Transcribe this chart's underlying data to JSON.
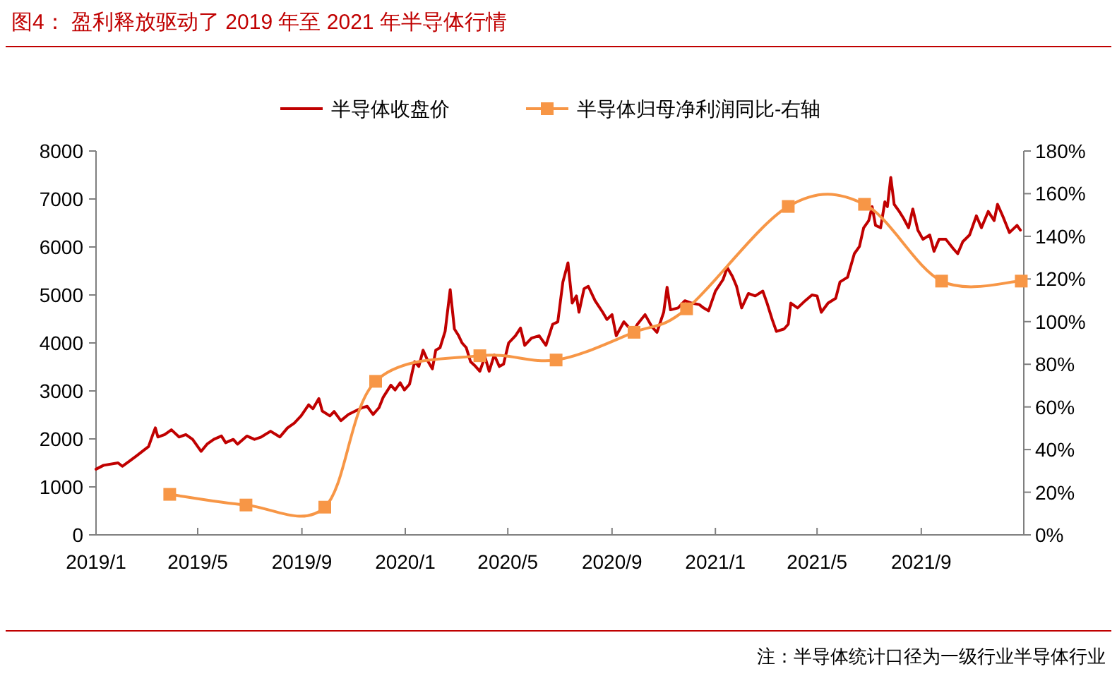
{
  "chart_data": {
    "type": "line",
    "title": "图4：  盈利释放驱动了 2019 年至 2021 年半导体行情",
    "annotations": [
      "注：半导体统计口径为一级行业半导体行业"
    ],
    "legend": "top",
    "xlim": [
      "2019-01-01",
      "2021-12-31"
    ],
    "xticks": [
      {
        "value": "2019-01-01",
        "label": "2019/1"
      },
      {
        "value": "2019-05-01",
        "label": "2019/5"
      },
      {
        "value": "2019-09-01",
        "label": "2019/9"
      },
      {
        "value": "2020-01-01",
        "label": "2020/1"
      },
      {
        "value": "2020-05-01",
        "label": "2020/5"
      },
      {
        "value": "2020-09-01",
        "label": "2020/9"
      },
      {
        "value": "2021-01-01",
        "label": "2021/1"
      },
      {
        "value": "2021-05-01",
        "label": "2021/5"
      },
      {
        "value": "2021-09-01",
        "label": "2021/9"
      }
    ],
    "ylim": [
      0,
      8000
    ],
    "yticks": [
      0,
      1000,
      2000,
      3000,
      4000,
      5000,
      6000,
      7000,
      8000
    ],
    "y2lim": [
      0,
      180
    ],
    "y2ticks": [
      {
        "value": 0,
        "label": "0%"
      },
      {
        "value": 20,
        "label": "20%"
      },
      {
        "value": 40,
        "label": "40%"
      },
      {
        "value": 60,
        "label": "60%"
      },
      {
        "value": 80,
        "label": "80%"
      },
      {
        "value": 100,
        "label": "100%"
      },
      {
        "value": 120,
        "label": "120%"
      },
      {
        "value": 140,
        "label": "140%"
      },
      {
        "value": 160,
        "label": "160%"
      },
      {
        "value": 180,
        "label": "180%"
      }
    ],
    "series": [
      {
        "name": "半导体收盘价",
        "type": "line",
        "color": "#c00000",
        "marker": "none",
        "x": [
          "2019-01-01",
          "2019-01-10",
          "2019-01-27",
          "2019-02-01",
          "2019-02-09",
          "2019-02-18",
          "2019-02-26",
          "2019-03-04",
          "2019-03-09",
          "2019-03-12",
          "2019-03-15",
          "2019-03-23",
          "2019-03-31",
          "2019-04-09",
          "2019-04-17",
          "2019-04-25",
          "2019-05-05",
          "2019-05-12",
          "2019-05-20",
          "2019-05-29",
          "2019-06-03",
          "2019-06-12",
          "2019-06-17",
          "2019-06-28",
          "2019-07-07",
          "2019-07-15",
          "2019-07-26",
          "2019-08-06",
          "2019-08-15",
          "2019-08-23",
          "2019-08-31",
          "2019-09-09",
          "2019-09-14",
          "2019-09-21",
          "2019-09-25",
          "2019-10-04",
          "2019-10-09",
          "2019-10-17",
          "2019-10-26",
          "2019-11-03",
          "2019-11-11",
          "2019-11-17",
          "2019-11-24",
          "2019-12-01",
          "2019-12-06",
          "2019-12-15",
          "2019-12-20",
          "2019-12-26",
          "2019-12-31",
          "2020-01-06",
          "2020-01-12",
          "2020-01-17",
          "2020-01-22",
          "2020-01-28",
          "2020-02-02",
          "2020-02-06",
          "2020-02-11",
          "2020-02-17",
          "2020-02-23",
          "2020-02-28",
          "2020-03-04",
          "2020-03-08",
          "2020-03-13",
          "2020-03-18",
          "2020-03-24",
          "2020-03-29",
          "2020-04-04",
          "2020-04-09",
          "2020-04-15",
          "2020-04-21",
          "2020-04-26",
          "2020-05-02",
          "2020-05-10",
          "2020-05-16",
          "2020-05-21",
          "2020-05-29",
          "2020-06-07",
          "2020-06-15",
          "2020-06-23",
          "2020-06-29",
          "2020-07-05",
          "2020-07-11",
          "2020-07-16",
          "2020-07-21",
          "2020-07-24",
          "2020-07-30",
          "2020-08-04",
          "2020-08-12",
          "2020-08-21",
          "2020-08-26",
          "2020-09-01",
          "2020-09-06",
          "2020-09-15",
          "2020-09-20",
          "2020-09-26",
          "2020-10-01",
          "2020-10-10",
          "2020-10-18",
          "2020-10-24",
          "2020-11-01",
          "2020-11-05",
          "2020-11-09",
          "2020-11-18",
          "2020-11-26",
          "2020-12-04",
          "2020-12-13",
          "2020-12-18",
          "2020-12-24",
          "2021-01-01",
          "2021-01-10",
          "2021-01-15",
          "2021-01-21",
          "2021-01-26",
          "2021-02-01",
          "2021-02-09",
          "2021-02-17",
          "2021-02-26",
          "2021-03-03",
          "2021-03-09",
          "2021-03-14",
          "2021-03-23",
          "2021-03-28",
          "2021-03-31",
          "2021-04-08",
          "2021-04-17",
          "2021-04-25",
          "2021-05-01",
          "2021-05-06",
          "2021-05-14",
          "2021-05-23",
          "2021-05-28",
          "2021-06-06",
          "2021-06-14",
          "2021-06-20",
          "2021-06-25",
          "2021-07-01",
          "2021-07-05",
          "2021-07-09",
          "2021-07-15",
          "2021-07-20",
          "2021-07-23",
          "2021-07-27",
          "2021-07-31",
          "2021-08-06",
          "2021-08-11",
          "2021-08-17",
          "2021-08-22",
          "2021-08-28",
          "2021-09-03",
          "2021-09-11",
          "2021-09-16",
          "2021-09-22",
          "2021-09-30",
          "2021-10-09",
          "2021-10-14",
          "2021-10-20",
          "2021-10-28",
          "2021-11-05",
          "2021-11-11",
          "2021-11-19",
          "2021-11-26",
          "2021-11-30",
          "2021-12-06",
          "2021-12-14",
          "2021-12-23",
          "2021-12-27"
        ],
        "values": [
          1370,
          1450,
          1500,
          1430,
          1530,
          1650,
          1760,
          1840,
          2090,
          2230,
          2040,
          2090,
          2190,
          2040,
          2090,
          1990,
          1740,
          1890,
          1990,
          2060,
          1920,
          1990,
          1890,
          2060,
          1990,
          2040,
          2160,
          2040,
          2230,
          2330,
          2480,
          2710,
          2630,
          2840,
          2580,
          2480,
          2570,
          2380,
          2510,
          2580,
          2650,
          2680,
          2510,
          2650,
          2870,
          3120,
          3020,
          3170,
          3020,
          3140,
          3610,
          3510,
          3850,
          3610,
          3460,
          3850,
          3900,
          4240,
          5110,
          4290,
          4150,
          4000,
          3900,
          3610,
          3510,
          3410,
          3710,
          3410,
          3750,
          3510,
          3560,
          4000,
          4150,
          4310,
          3950,
          4100,
          4150,
          3950,
          4390,
          4440,
          5270,
          5670,
          4830,
          4980,
          4640,
          5130,
          5180,
          4880,
          4640,
          4490,
          4590,
          4150,
          4440,
          4340,
          4240,
          4390,
          4590,
          4340,
          4220,
          4640,
          5160,
          4690,
          4730,
          4880,
          4830,
          4800,
          4730,
          4670,
          5080,
          5320,
          5570,
          5390,
          5180,
          4730,
          5030,
          4980,
          5080,
          4830,
          4490,
          4240,
          4290,
          4390,
          4830,
          4730,
          4880,
          5000,
          4980,
          4640,
          4830,
          4930,
          5270,
          5370,
          5860,
          6010,
          6400,
          6550,
          6840,
          6450,
          6400,
          6940,
          6840,
          7450,
          6890,
          6740,
          6600,
          6400,
          6790,
          6350,
          6160,
          6250,
          5910,
          6160,
          6160,
          5960,
          5860,
          6110,
          6250,
          6650,
          6400,
          6740,
          6550,
          6890,
          6650,
          6300,
          6450,
          6350
        ]
      },
      {
        "name": "半导体归母净利润同比-右轴",
        "type": "line",
        "color": "#f79646",
        "marker": "square",
        "axis": "y2",
        "x": [
          "2019-03-29",
          "2019-06-27",
          "2019-09-28",
          "2019-11-27",
          "2020-03-29",
          "2020-06-27",
          "2020-09-27",
          "2020-11-28",
          "2021-03-28",
          "2021-06-26",
          "2021-09-25",
          "2021-12-28"
        ],
        "values": [
          19,
          14,
          13,
          72,
          84,
          82,
          95,
          106,
          154,
          155,
          119,
          119
        ]
      }
    ]
  }
}
